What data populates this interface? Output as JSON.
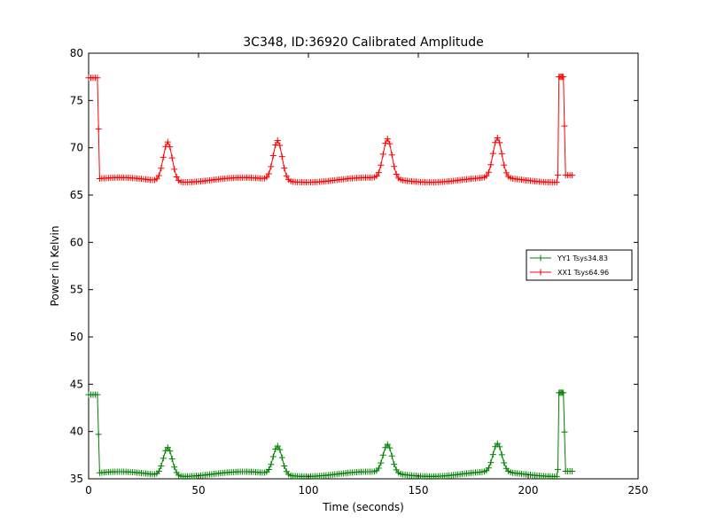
{
  "chart_data": {
    "type": "line",
    "title": "3C348, ID:36920 Calibrated Amplitude",
    "xlabel": "Time (seconds)",
    "ylabel": "Power in Kelvin",
    "xlim": [
      0,
      250
    ],
    "ylim": [
      35,
      80
    ],
    "xticks": [
      0,
      50,
      100,
      150,
      200,
      250
    ],
    "yticks": [
      35,
      40,
      45,
      50,
      55,
      60,
      65,
      70,
      75,
      80
    ],
    "grid": false,
    "legend_position": "center-right",
    "marker": "plus",
    "series": [
      {
        "name": "YY1 Tsys34.83",
        "color": "#008000",
        "baseline": 35.5,
        "peak": 38.5,
        "peak_times": [
          36,
          86,
          136,
          186
        ],
        "peak_width_sigma": 2.0,
        "start_segment": {
          "t_start": 0,
          "t_end": 4,
          "value": 43.9
        },
        "end_segment": {
          "t_start": 214,
          "t_end": 216,
          "value": 44.1
        },
        "tail_value": 35.8,
        "time_end": 220
      },
      {
        "name": "XX1 Tsys64.96",
        "color": "#ff0000",
        "baseline": 66.6,
        "peak": 70.8,
        "peak_times": [
          36,
          86,
          136,
          186
        ],
        "peak_width_sigma": 2.0,
        "start_segment": {
          "t_start": 0,
          "t_end": 4,
          "value": 77.4
        },
        "end_segment": {
          "t_start": 214,
          "t_end": 216,
          "value": 77.5
        },
        "tail_value": 67.1,
        "time_end": 220
      }
    ]
  }
}
